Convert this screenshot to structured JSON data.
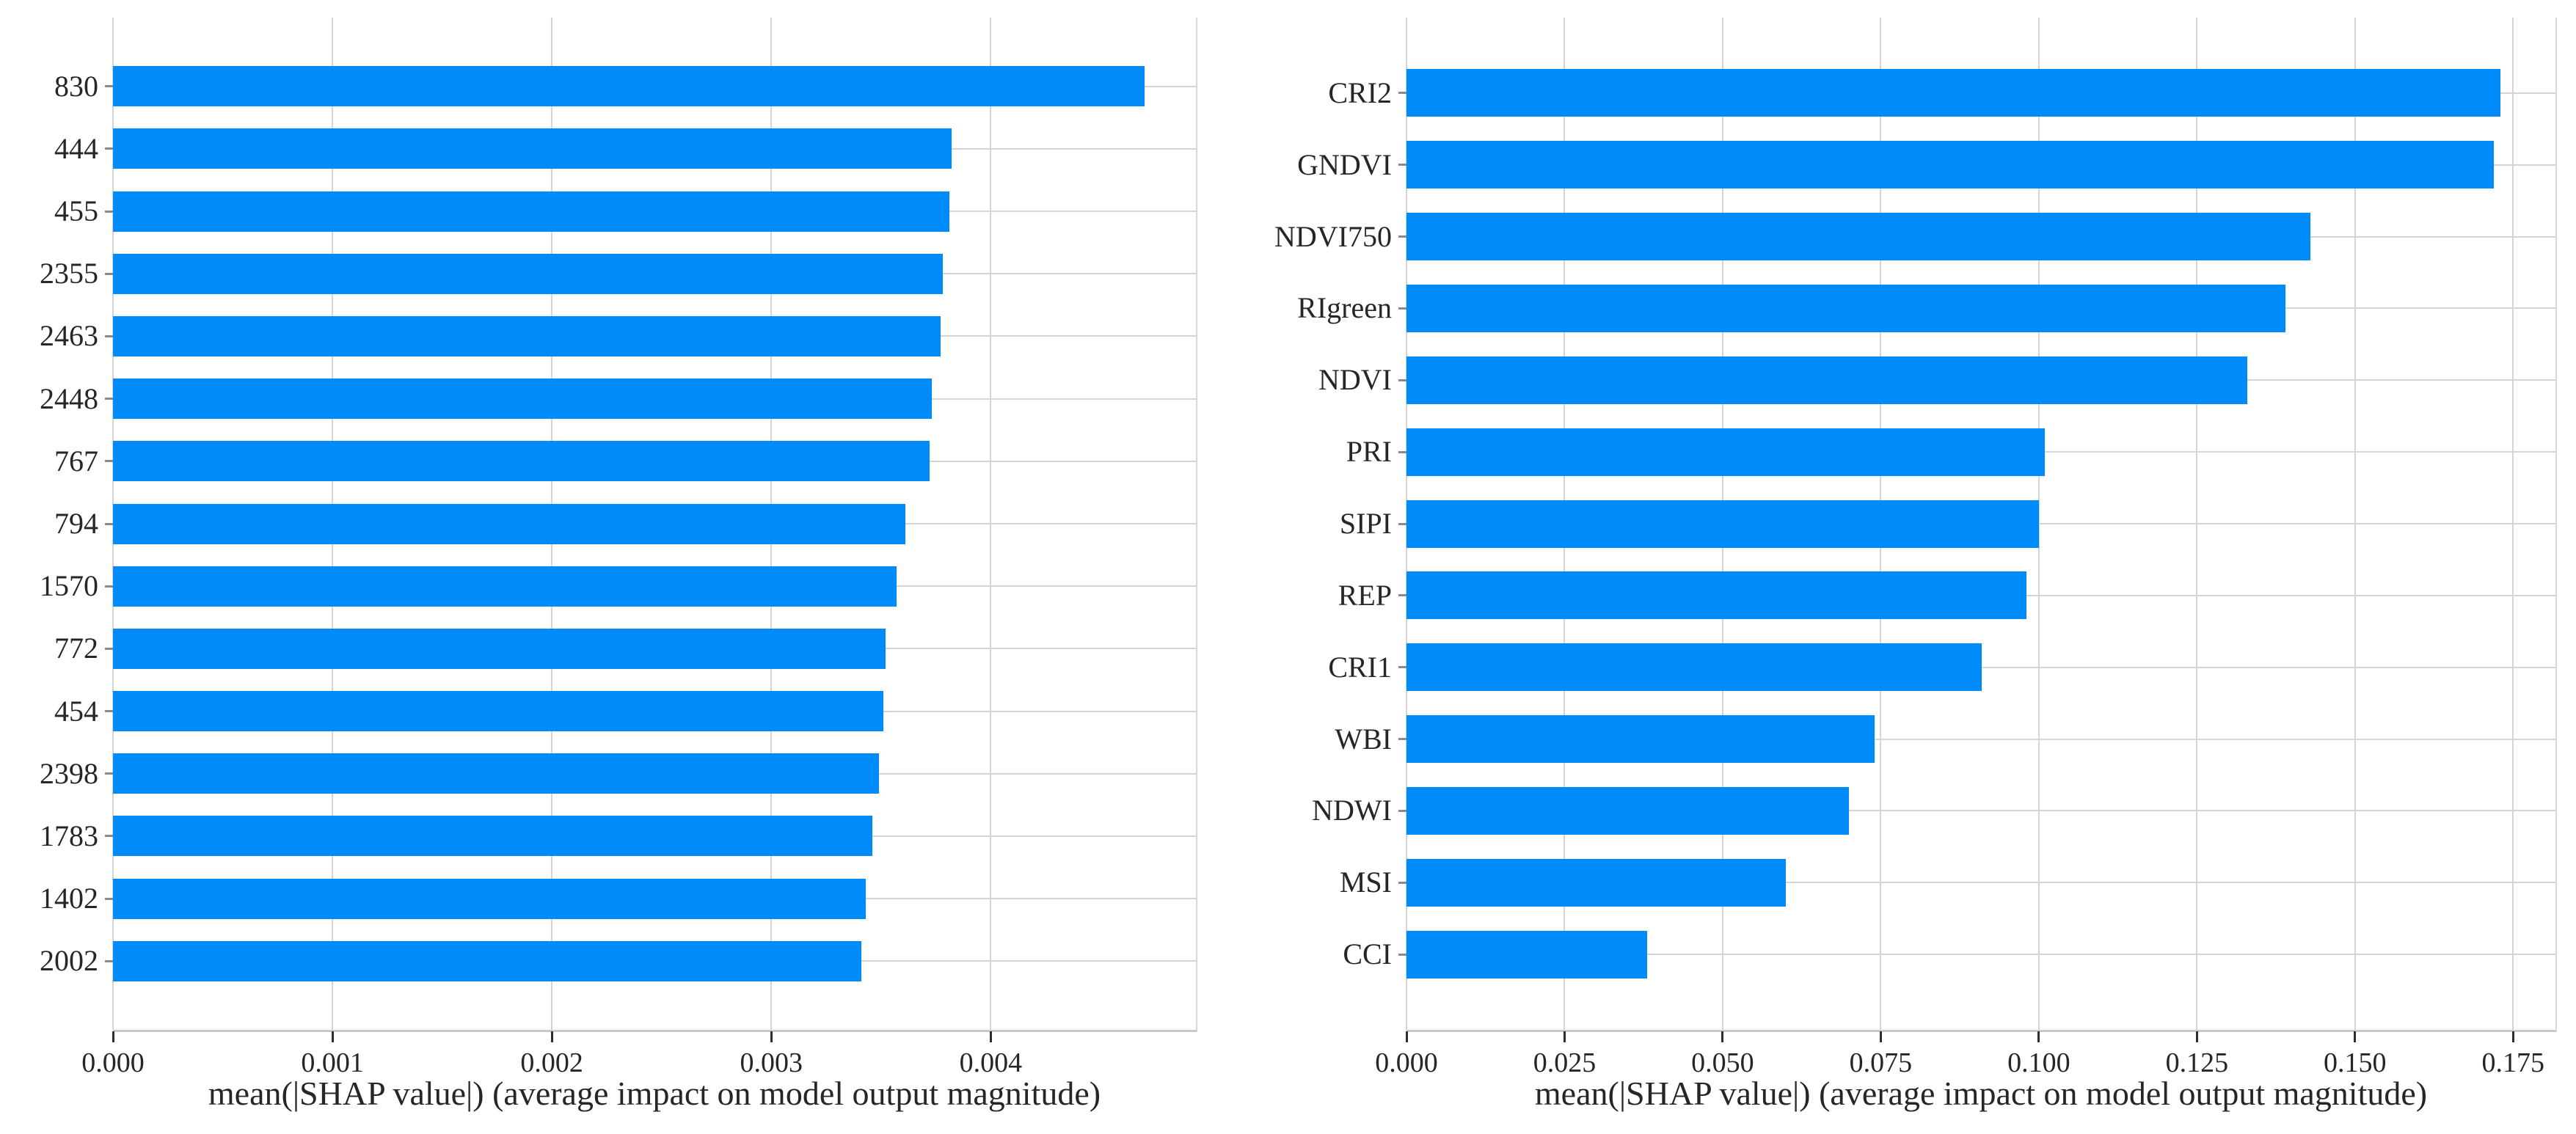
{
  "figure": {
    "background": "#ffffff",
    "bar_color": "#008bfb",
    "grid_color": "#d4d4d4",
    "text_color": "#262626"
  },
  "chart_data": [
    {
      "type": "bar",
      "orientation": "horizontal",
      "title": "",
      "categories": [
        "830",
        "444",
        "455",
        "2355",
        "2463",
        "2448",
        "767",
        "794",
        "1570",
        "772",
        "454",
        "2398",
        "1783",
        "1402",
        "2002"
      ],
      "values": [
        0.0047,
        0.00382,
        0.00381,
        0.00378,
        0.00377,
        0.00373,
        0.00372,
        0.00361,
        0.00357,
        0.00352,
        0.00351,
        0.00349,
        0.00346,
        0.00343,
        0.00341
      ],
      "xlabel": "mean(|SHAP value|) (average impact on model output magnitude)",
      "xticks": [
        0,
        0.001,
        0.002,
        0.003,
        0.004
      ],
      "xtick_labels": [
        "0.000",
        "0.001",
        "0.002",
        "0.003",
        "0.004"
      ],
      "xlim": [
        0,
        0.004935
      ],
      "grid": true,
      "legend": false,
      "bar_color": "#008bfb"
    },
    {
      "type": "bar",
      "orientation": "horizontal",
      "title": "",
      "categories": [
        "CRI2",
        "GNDVI",
        "NDVI750",
        "RIgreen",
        "NDVI",
        "PRI",
        "SIPI",
        "REP",
        "CRI1",
        "WBI",
        "NDWI",
        "MSI",
        "CCI"
      ],
      "values": [
        0.173,
        0.172,
        0.143,
        0.139,
        0.133,
        0.101,
        0.1,
        0.098,
        0.091,
        0.074,
        0.07,
        0.06,
        0.038
      ],
      "xlabel": "mean(|SHAP value|) (average impact on model output magnitude)",
      "xticks": [
        0,
        0.025,
        0.05,
        0.075,
        0.1,
        0.125,
        0.15,
        0.175
      ],
      "xtick_labels": [
        "0.000",
        "0.025",
        "0.050",
        "0.075",
        "0.100",
        "0.125",
        "0.150",
        "0.175"
      ],
      "xlim": [
        0,
        0.1817
      ],
      "grid": true,
      "legend": false,
      "bar_color": "#008bfb"
    }
  ]
}
